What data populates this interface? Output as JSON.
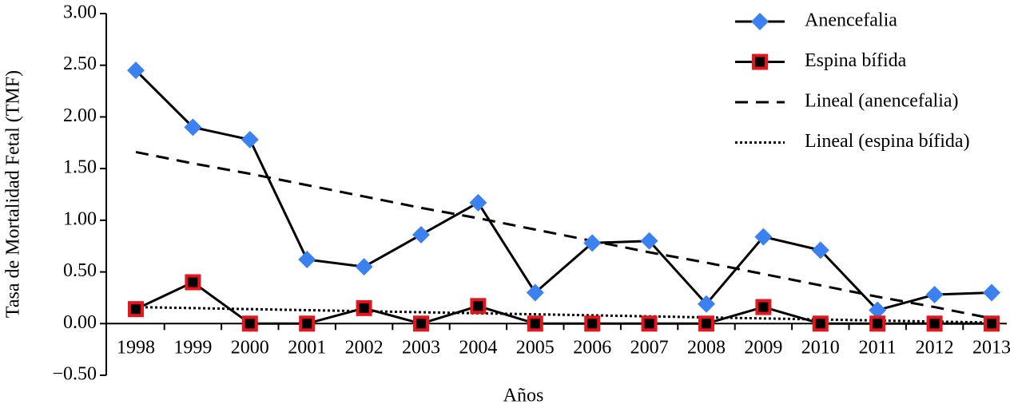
{
  "chart_data": {
    "type": "line",
    "x_label": "Años",
    "y_label": "Tasa de Mortalidad Fetal (TMF)",
    "categories": [
      "1998",
      "1999",
      "2000",
      "2001",
      "2002",
      "2003",
      "2004",
      "2005",
      "2006",
      "2007",
      "2008",
      "2009",
      "2010",
      "2011",
      "2012",
      "2013"
    ],
    "series": [
      {
        "name": "Anencefalia",
        "color": "#3b82f0",
        "marker": "diamond",
        "line": "solid",
        "values": [
          2.45,
          1.9,
          1.78,
          0.62,
          0.55,
          0.86,
          1.17,
          0.3,
          0.78,
          0.8,
          0.19,
          0.84,
          0.71,
          0.13,
          0.28,
          0.3
        ]
      },
      {
        "name": "Espina bífida",
        "color": "#e8141a",
        "marker": "square",
        "line": "solid",
        "values": [
          0.14,
          0.4,
          0,
          0,
          0.15,
          0,
          0.17,
          0,
          0,
          0,
          0,
          0.16,
          0,
          0,
          0,
          0
        ]
      },
      {
        "name": "Lineal (anencefalia)",
        "color": "#000000",
        "line": "dashed",
        "values": [
          1.66,
          1.55,
          1.45,
          1.34,
          1.23,
          1.12,
          1.02,
          0.91,
          0.8,
          0.69,
          0.59,
          0.48,
          0.37,
          0.26,
          0.16,
          0.05
        ]
      },
      {
        "name": "Lineal (espina bífida)",
        "color": "#000000",
        "line": "dotted",
        "values": [
          0.16,
          0.15,
          0.14,
          0.13,
          0.12,
          0.11,
          0.1,
          0.09,
          0.08,
          0.07,
          0.06,
          0.05,
          0.04,
          0.03,
          0.02,
          0.01
        ]
      }
    ],
    "ylim": [
      -0.5,
      3.0
    ],
    "yticks": [
      {
        "value": -0.5,
        "label": "−0.50"
      },
      {
        "value": 0,
        "label": "0.00"
      },
      {
        "value": 0.5,
        "label": "0.50"
      },
      {
        "value": 1.0,
        "label": "1.00"
      },
      {
        "value": 1.5,
        "label": "1.50"
      },
      {
        "value": 2.0,
        "label": "2.00"
      },
      {
        "value": 2.5,
        "label": "2.50"
      },
      {
        "value": 3.0,
        "label": "3.00"
      }
    ],
    "legend": "top-right"
  }
}
